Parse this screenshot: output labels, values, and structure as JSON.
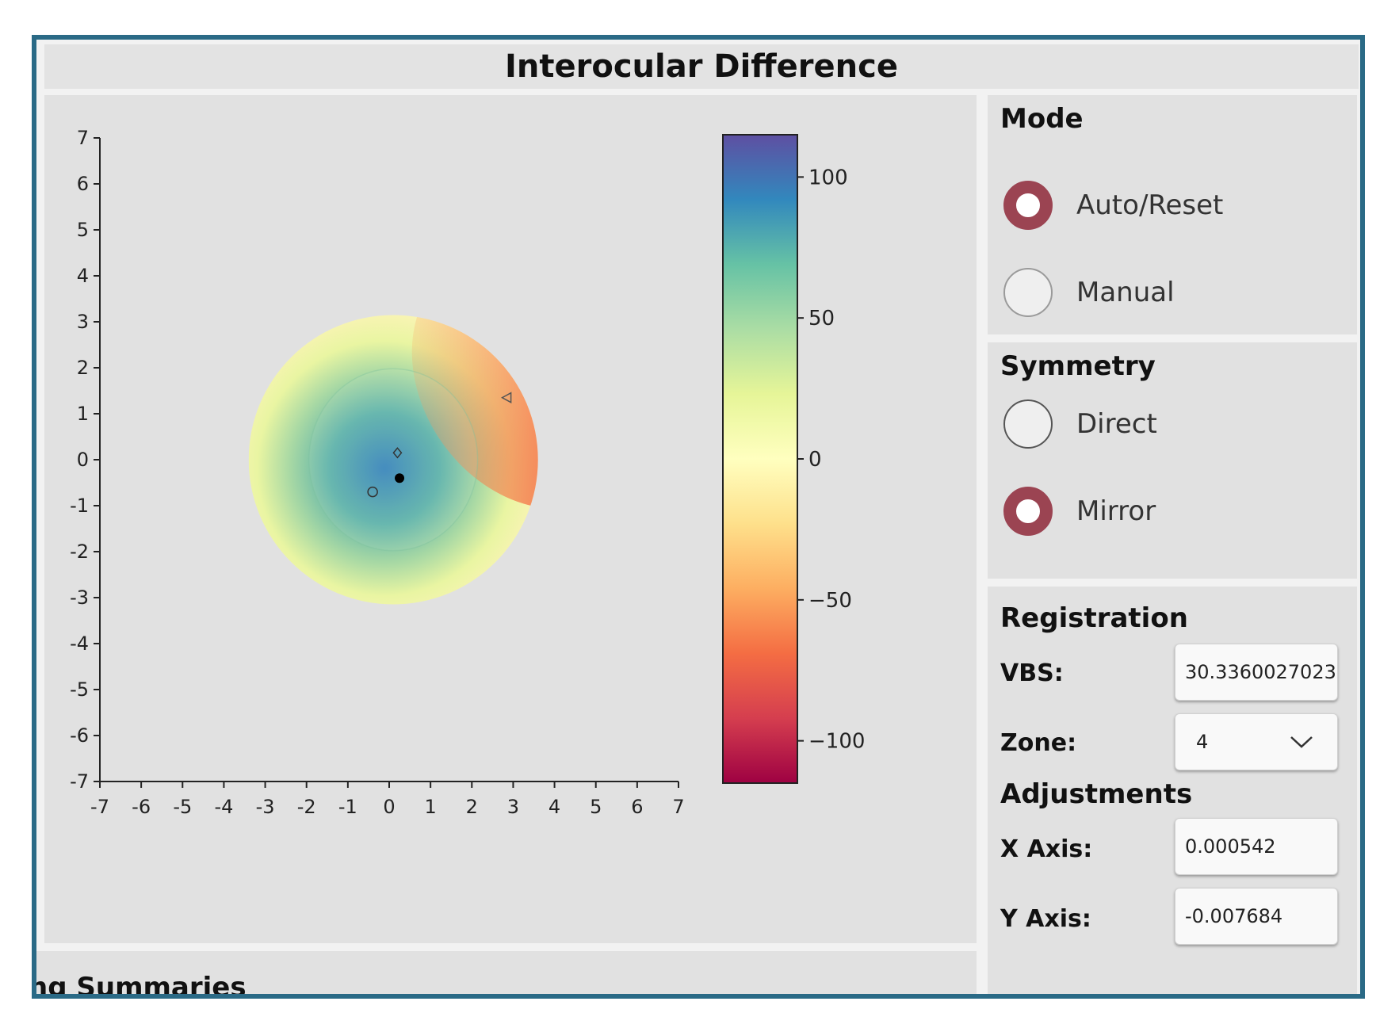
{
  "window": {
    "title": "Interocular Difference"
  },
  "chart_data": {
    "type": "heatmap",
    "title": "",
    "xlabel": "",
    "ylabel": "",
    "xlim": [
      -7,
      7
    ],
    "ylim": [
      -7,
      7
    ],
    "x_ticks": [
      "-7",
      "-6",
      "-5",
      "-4",
      "-3",
      "-2",
      "-1",
      "0",
      "1",
      "2",
      "3",
      "4",
      "5",
      "6",
      "7"
    ],
    "y_ticks": [
      "7",
      "6",
      "5",
      "4",
      "3",
      "2",
      "1",
      "0",
      "-1",
      "-2",
      "-3",
      "-4",
      "-5",
      "-6",
      "-7"
    ],
    "colormap": "Spectral",
    "colorbar": {
      "range": [
        -115,
        115
      ],
      "ticks": [
        "100",
        "50",
        "0",
        "−50",
        "−100"
      ]
    },
    "field": {
      "center": [
        0.1,
        0.0
      ],
      "radius": 3.5,
      "inner_zone_radius": 2.0
    },
    "markers": [
      {
        "shape": "diamond",
        "x": 0.2,
        "y": 0.15
      },
      {
        "shape": "filled-circle",
        "x": 0.25,
        "y": -0.4
      },
      {
        "shape": "open-circle",
        "x": -0.4,
        "y": -0.7
      },
      {
        "shape": "triangle-left",
        "x": 2.85,
        "y": 1.35
      }
    ]
  },
  "mode": {
    "title": "Mode",
    "options": [
      {
        "label": "Auto/Reset",
        "selected": true
      },
      {
        "label": "Manual",
        "selected": false
      }
    ]
  },
  "symmetry": {
    "title": "Symmetry",
    "options": [
      {
        "label": "Direct",
        "selected": false
      },
      {
        "label": "Mirror",
        "selected": true
      }
    ]
  },
  "registration": {
    "title": "Registration",
    "vbs_label": "VBS:",
    "vbs_value": "30.3360027023",
    "zone_label": "Zone:",
    "zone_value": "4"
  },
  "adjustments": {
    "title": "Adjustments",
    "x_label": "X Axis:",
    "x_value": "0.000542",
    "y_label": "Y Axis:",
    "y_value": "-0.007684"
  },
  "bottom_section": {
    "title": "ng Summaries"
  },
  "colors": {
    "frame": "#2a6a86",
    "radio_selected": "#9b4452",
    "panel": "#e1e1e1"
  }
}
